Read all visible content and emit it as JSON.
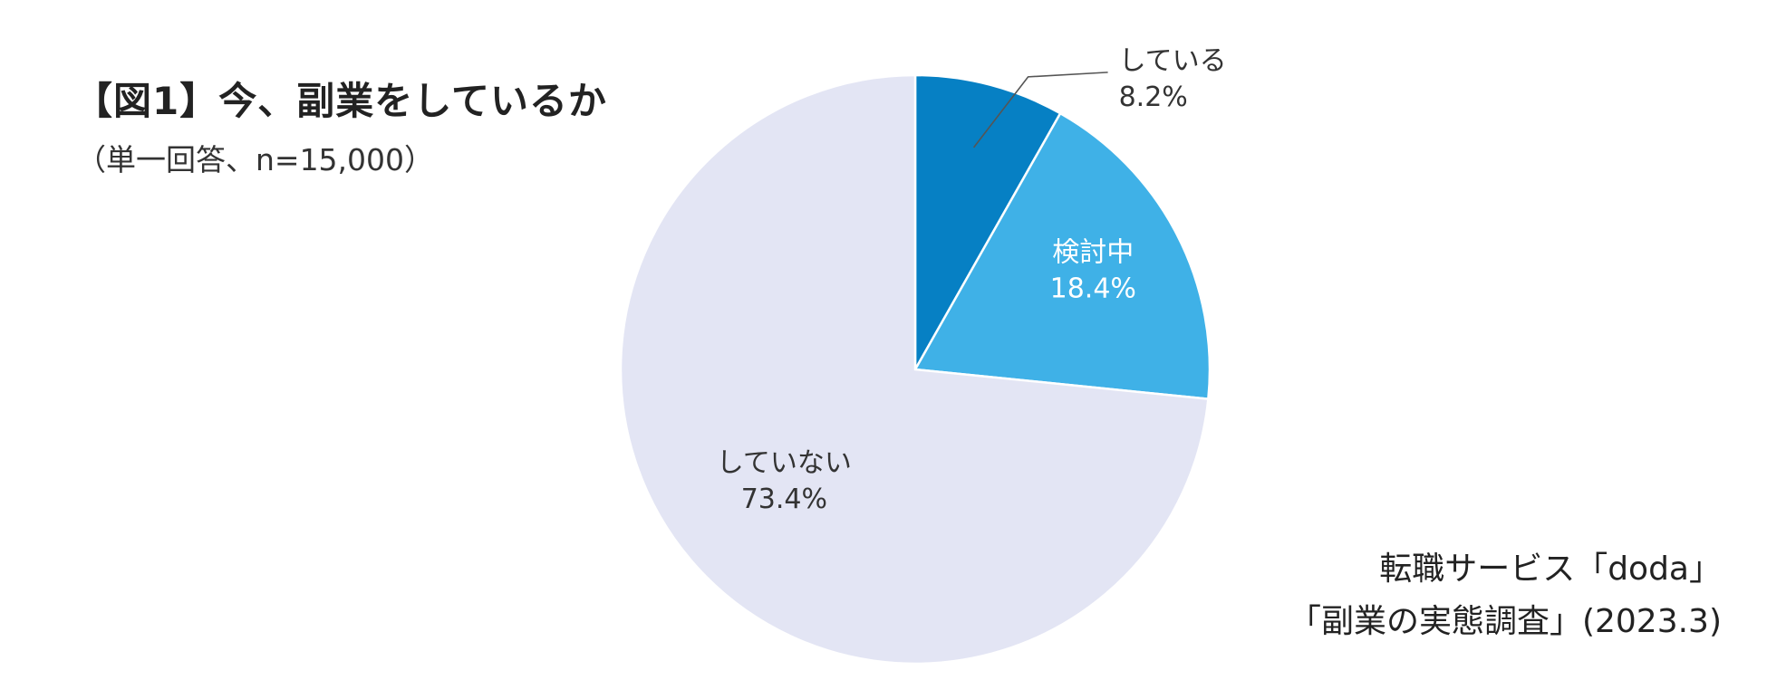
{
  "chart_data": {
    "type": "pie",
    "title": "【図1】今、副業をしているか",
    "subtitle": "（単一回答、n=15,000）",
    "slices": [
      {
        "label": "している",
        "value": 8.2,
        "display": "8.2%",
        "color": "#0680c4",
        "text_color": "#333333"
      },
      {
        "label": "検討中",
        "value": 18.4,
        "display": "18.4%",
        "color": "#3fb1e7",
        "text_color": "#ffffff"
      },
      {
        "label": "していない",
        "value": 73.4,
        "display": "73.4%",
        "color": "#e3e5f4",
        "text_color": "#333333"
      }
    ],
    "start_angle": "12 o'clock",
    "direction": "clockwise",
    "source": [
      "転職サービス「doda」",
      "「副業の実態調査」(2023.3)"
    ]
  }
}
